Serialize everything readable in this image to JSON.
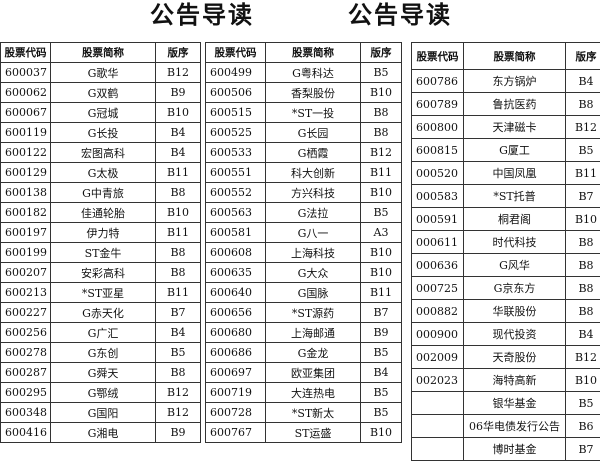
{
  "titles": [
    "公告导读",
    "公告导读"
  ],
  "headers": [
    "股票代码",
    "股票简称",
    "版序"
  ],
  "tables": [
    {
      "rows": [
        [
          "600037",
          "G歌华",
          "B12"
        ],
        [
          "600062",
          "G双鹤",
          "B9"
        ],
        [
          "600067",
          "G冠城",
          "B10"
        ],
        [
          "600119",
          "G长投",
          "B4"
        ],
        [
          "600122",
          "宏图高科",
          "B4"
        ],
        [
          "600129",
          "G太极",
          "B11"
        ],
        [
          "600138",
          "G中青旅",
          "B8"
        ],
        [
          "600182",
          "佳通轮胎",
          "B10"
        ],
        [
          "600197",
          "伊力特",
          "B11"
        ],
        [
          "600199",
          "ST金牛",
          "B8"
        ],
        [
          "600207",
          "安彩高科",
          "B8"
        ],
        [
          "600213",
          "*ST亚星",
          "B11"
        ],
        [
          "600227",
          "G赤天化",
          "B7"
        ],
        [
          "600256",
          "G广汇",
          "B4"
        ],
        [
          "600278",
          "G东创",
          "B5"
        ],
        [
          "600287",
          "G舜天",
          "B8"
        ],
        [
          "600295",
          "G鄂绒",
          "B12"
        ],
        [
          "600348",
          "G国阳",
          "B12"
        ],
        [
          "600416",
          "G湘电",
          "B9"
        ]
      ]
    },
    {
      "rows": [
        [
          "600499",
          "G粤科达",
          "B5"
        ],
        [
          "600506",
          "香梨股份",
          "B10"
        ],
        [
          "600515",
          "*ST一投",
          "B8"
        ],
        [
          "600525",
          "G长园",
          "B8"
        ],
        [
          "600533",
          "G栖霞",
          "B12"
        ],
        [
          "600551",
          "科大创新",
          "B11"
        ],
        [
          "600552",
          "方兴科技",
          "B10"
        ],
        [
          "600563",
          "G法拉",
          "B5"
        ],
        [
          "600581",
          "G八一",
          "A3"
        ],
        [
          "600608",
          "上海科技",
          "B10"
        ],
        [
          "600635",
          "G大众",
          "B10"
        ],
        [
          "600640",
          "G国脉",
          "B11"
        ],
        [
          "600656",
          "*ST源药",
          "B7"
        ],
        [
          "600680",
          "上海邮通",
          "B9"
        ],
        [
          "600686",
          "G金龙",
          "B5"
        ],
        [
          "600697",
          "欧亚集团",
          "B4"
        ],
        [
          "600719",
          "大连热电",
          "B5"
        ],
        [
          "600728",
          "*ST新太",
          "B5"
        ],
        [
          "600767",
          "ST运盛",
          "B10"
        ]
      ]
    },
    {
      "rows": [
        [
          "600786",
          "东方锅炉",
          "B4"
        ],
        [
          "600789",
          "鲁抗医药",
          "B8"
        ],
        [
          "600800",
          "天津磁卡",
          "B12"
        ],
        [
          "600815",
          "G厦工",
          "B5"
        ],
        [
          "000520",
          "中国凤凰",
          "B11"
        ],
        [
          "000583",
          "*ST托普",
          "B7"
        ],
        [
          "000591",
          "桐君阁",
          "B10"
        ],
        [
          "000611",
          "时代科技",
          "B8"
        ],
        [
          "000636",
          "G风华",
          "B8"
        ],
        [
          "000725",
          "G京东方",
          "B8"
        ],
        [
          "000882",
          "华联股份",
          "B8"
        ],
        [
          "000900",
          "现代投资",
          "B4"
        ],
        [
          "002009",
          "天奇股份",
          "B12"
        ],
        [
          "002023",
          "海特高新",
          "B10"
        ],
        [
          "",
          "银华基金",
          "B5"
        ],
        [
          "",
          "06华电债发行公告",
          "B6"
        ],
        [
          "",
          "博时基金",
          "B7"
        ]
      ]
    }
  ]
}
